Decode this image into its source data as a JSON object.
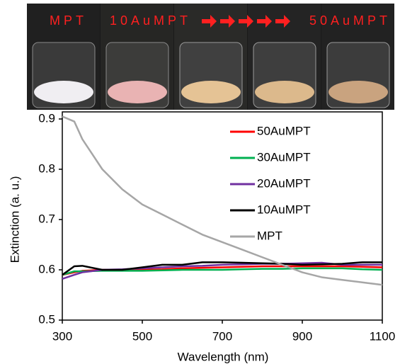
{
  "photo": {
    "labels": [
      "MPT",
      "10AuMPT",
      "50AuMPT"
    ]
  },
  "chart_data": {
    "type": "line",
    "xlabel": "Wavelength (nm)",
    "ylabel": "Extinction (a. u.)",
    "x": [
      300,
      330,
      350,
      400,
      450,
      500,
      550,
      600,
      650,
      700,
      750,
      800,
      850,
      900,
      950,
      1000,
      1050,
      1100
    ],
    "series": [
      {
        "name": "50AuMPT",
        "color": "#ff0000",
        "values": [
          0.59,
          0.595,
          0.598,
          0.6,
          0.6,
          0.6,
          0.601,
          0.603,
          0.604,
          0.605,
          0.606,
          0.607,
          0.607,
          0.607,
          0.607,
          0.607,
          0.606,
          0.605
        ]
      },
      {
        "name": "30AuMPT",
        "color": "#00b050",
        "values": [
          0.59,
          0.597,
          0.597,
          0.598,
          0.598,
          0.598,
          0.599,
          0.6,
          0.6,
          0.6,
          0.601,
          0.602,
          0.602,
          0.603,
          0.603,
          0.603,
          0.601,
          0.6
        ]
      },
      {
        "name": "20AuMPT",
        "color": "#7030a0",
        "values": [
          0.582,
          0.59,
          0.595,
          0.6,
          0.601,
          0.603,
          0.605,
          0.607,
          0.608,
          0.61,
          0.611,
          0.612,
          0.612,
          0.613,
          0.614,
          0.61,
          0.61,
          0.61
        ]
      },
      {
        "name": "10AuMPT",
        "color": "#000000",
        "values": [
          0.59,
          0.607,
          0.608,
          0.6,
          0.6,
          0.605,
          0.61,
          0.61,
          0.615,
          0.615,
          0.614,
          0.613,
          0.612,
          0.61,
          0.611,
          0.612,
          0.615,
          0.615
        ]
      },
      {
        "name": "MPT",
        "color": "#a6a6a6",
        "values": [
          0.905,
          0.895,
          0.86,
          0.8,
          0.76,
          0.73,
          0.71,
          0.69,
          0.67,
          0.655,
          0.64,
          0.625,
          0.61,
          0.595,
          0.585,
          0.58,
          0.575,
          0.57
        ]
      }
    ],
    "xlim": [
      300,
      1100
    ],
    "xticks": [
      300,
      500,
      700,
      900,
      1100
    ],
    "ylim": [
      0.5,
      0.9
    ],
    "yticks": [
      0.5,
      0.6,
      0.7,
      0.8,
      0.9
    ],
    "grid": false,
    "legend": "upper right"
  }
}
